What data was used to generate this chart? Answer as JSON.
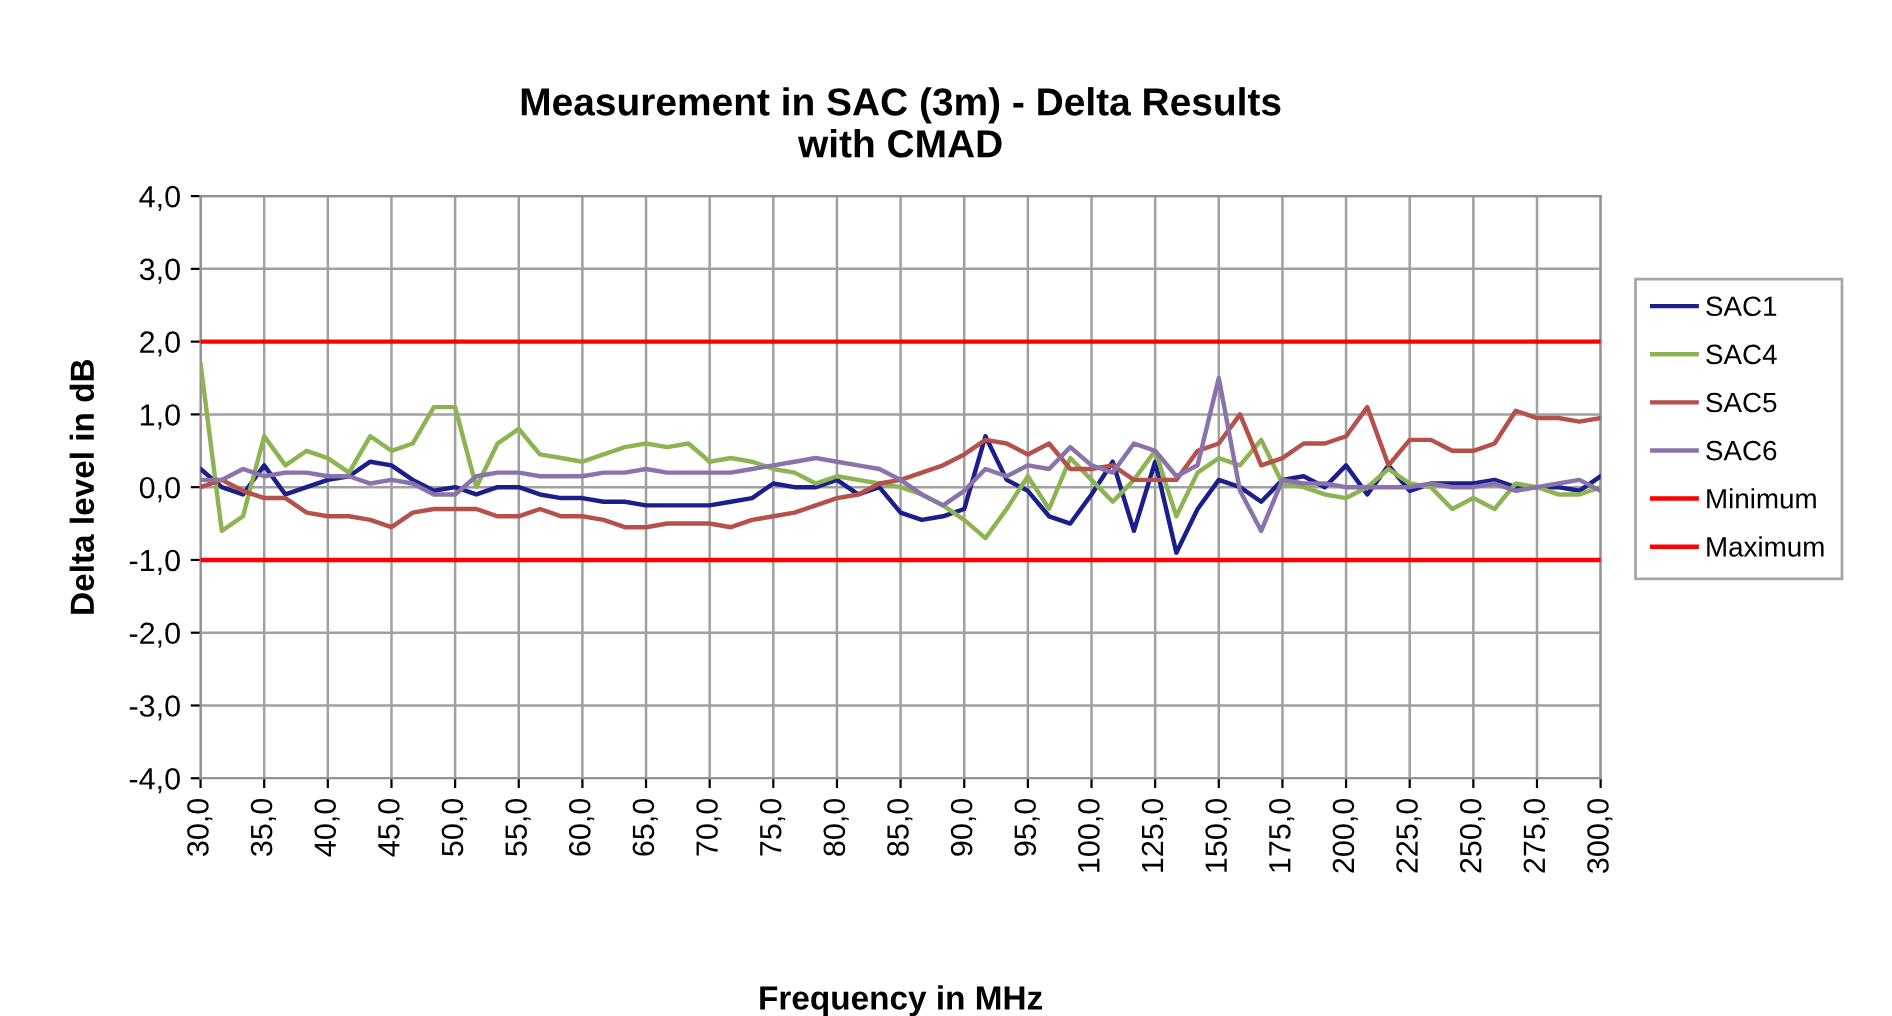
{
  "chart_data": {
    "type": "line",
    "title": "Measurement in SAC (3m) - Delta Results\nwith CMAD",
    "xlabel": "Frequency in MHz",
    "ylabel": "Delta level in dB",
    "categories": [
      "30,0",
      null,
      null,
      "35,0",
      null,
      null,
      "40,0",
      null,
      null,
      "45,0",
      null,
      null,
      "50,0",
      null,
      null,
      "55,0",
      null,
      null,
      "60,0",
      null,
      null,
      "65,0",
      null,
      null,
      "70,0",
      null,
      null,
      "75,0",
      null,
      null,
      "80,0",
      null,
      null,
      "85,0",
      null,
      null,
      "90,0",
      null,
      null,
      "95,0",
      null,
      null,
      "100,0",
      null,
      null,
      "125,0",
      null,
      null,
      "150,0",
      null,
      null,
      "175,0",
      null,
      null,
      "200,0",
      null,
      null,
      "225,0",
      null,
      null,
      "250,0",
      null,
      null,
      "275,0",
      null,
      null,
      "300,0"
    ],
    "series": [
      {
        "name": "SAC1",
        "color": "#1a1f8c",
        "values": [
          0.25,
          0.0,
          -0.1,
          0.3,
          -0.1,
          0.0,
          0.1,
          0.15,
          0.35,
          0.3,
          0.1,
          -0.05,
          0.0,
          -0.1,
          0.0,
          0.0,
          -0.1,
          -0.15,
          -0.15,
          -0.2,
          -0.2,
          -0.25,
          -0.25,
          -0.25,
          -0.25,
          -0.2,
          -0.15,
          0.05,
          0.0,
          0.0,
          0.1,
          -0.1,
          0.0,
          -0.35,
          -0.45,
          -0.4,
          -0.3,
          0.7,
          0.1,
          -0.05,
          -0.4,
          -0.5,
          -0.1,
          0.35,
          -0.6,
          0.35,
          -0.9,
          -0.3,
          0.1,
          0.0,
          -0.2,
          0.1,
          0.15,
          0.0,
          0.3,
          -0.1,
          0.3,
          -0.05,
          0.05,
          0.05,
          0.05,
          0.1,
          0.0,
          0.0,
          0.0,
          -0.05,
          0.15
        ]
      },
      {
        "name": "SAC4",
        "color": "#8db453",
        "values": [
          1.7,
          -0.6,
          -0.4,
          0.7,
          0.3,
          0.5,
          0.4,
          0.2,
          0.7,
          0.5,
          0.6,
          1.1,
          1.1,
          0.0,
          0.6,
          0.8,
          0.45,
          0.4,
          0.35,
          0.45,
          0.55,
          0.6,
          0.55,
          0.6,
          0.35,
          0.4,
          0.35,
          0.25,
          0.2,
          0.05,
          0.15,
          0.1,
          0.05,
          0.0,
          -0.1,
          -0.25,
          -0.45,
          -0.7,
          -0.3,
          0.15,
          -0.3,
          0.4,
          0.1,
          -0.2,
          0.1,
          0.5,
          -0.4,
          0.2,
          0.4,
          0.3,
          0.65,
          0.05,
          0.0,
          -0.1,
          -0.15,
          0.0,
          0.25,
          0.05,
          0.0,
          -0.3,
          -0.15,
          -0.3,
          0.05,
          0.0,
          -0.1,
          -0.1,
          0.0
        ]
      },
      {
        "name": "SAC5",
        "color": "#b5504b",
        "values": [
          0.0,
          0.1,
          -0.05,
          -0.15,
          -0.15,
          -0.35,
          -0.4,
          -0.4,
          -0.45,
          -0.55,
          -0.35,
          -0.3,
          -0.3,
          -0.3,
          -0.4,
          -0.4,
          -0.3,
          -0.4,
          -0.4,
          -0.45,
          -0.55,
          -0.55,
          -0.5,
          -0.5,
          -0.5,
          -0.55,
          -0.45,
          -0.4,
          -0.35,
          -0.25,
          -0.15,
          -0.1,
          0.05,
          0.1,
          0.2,
          0.3,
          0.45,
          0.65,
          0.6,
          0.45,
          0.6,
          0.25,
          0.25,
          0.3,
          0.1,
          0.1,
          0.1,
          0.5,
          0.6,
          1.0,
          0.3,
          0.4,
          0.6,
          0.6,
          0.7,
          1.1,
          0.3,
          0.65,
          0.65,
          0.5,
          0.5,
          0.6,
          1.05,
          0.95,
          0.95,
          0.9,
          0.95
        ]
      },
      {
        "name": "SAC6",
        "color": "#8a72aa",
        "values": [
          0.1,
          0.1,
          0.25,
          0.15,
          0.2,
          0.2,
          0.15,
          0.15,
          0.05,
          0.1,
          0.05,
          -0.1,
          -0.1,
          0.15,
          0.2,
          0.2,
          0.15,
          0.15,
          0.15,
          0.2,
          0.2,
          0.25,
          0.2,
          0.2,
          0.2,
          0.2,
          0.25,
          0.3,
          0.35,
          0.4,
          0.35,
          0.3,
          0.25,
          0.1,
          -0.1,
          -0.25,
          -0.05,
          0.25,
          0.15,
          0.3,
          0.25,
          0.55,
          0.3,
          0.2,
          0.6,
          0.5,
          0.15,
          0.3,
          1.5,
          -0.05,
          -0.6,
          0.1,
          0.05,
          0.05,
          0.0,
          0.0,
          0.0,
          0.0,
          0.05,
          0.0,
          0.0,
          0.05,
          -0.05,
          0.0,
          0.05,
          0.1,
          -0.05
        ]
      },
      {
        "name": "Minimum",
        "color": "#ff0000",
        "values": [
          -1,
          -1,
          -1,
          -1,
          -1,
          -1,
          -1,
          -1,
          -1,
          -1,
          -1,
          -1,
          -1,
          -1,
          -1,
          -1,
          -1,
          -1,
          -1,
          -1,
          -1,
          -1,
          -1,
          -1,
          -1,
          -1,
          -1,
          -1,
          -1,
          -1,
          -1,
          -1,
          -1,
          -1,
          -1,
          -1,
          -1,
          -1,
          -1,
          -1,
          -1,
          -1,
          -1,
          -1,
          -1,
          -1,
          -1,
          -1,
          -1,
          -1,
          -1,
          -1,
          -1,
          -1,
          -1,
          -1,
          -1,
          -1,
          -1,
          -1,
          -1,
          -1,
          -1,
          -1,
          -1,
          -1,
          -1
        ]
      },
      {
        "name": "Maximum",
        "color": "#ff0000",
        "values": [
          2,
          2,
          2,
          2,
          2,
          2,
          2,
          2,
          2,
          2,
          2,
          2,
          2,
          2,
          2,
          2,
          2,
          2,
          2,
          2,
          2,
          2,
          2,
          2,
          2,
          2,
          2,
          2,
          2,
          2,
          2,
          2,
          2,
          2,
          2,
          2,
          2,
          2,
          2,
          2,
          2,
          2,
          2,
          2,
          2,
          2,
          2,
          2,
          2,
          2,
          2,
          2,
          2,
          2,
          2,
          2,
          2,
          2,
          2,
          2,
          2,
          2,
          2,
          2,
          2,
          2,
          2
        ]
      }
    ],
    "ylim": [
      -4,
      4
    ],
    "yticks": [
      {
        "value": -4,
        "label": "-4,0"
      },
      {
        "value": -3,
        "label": "-3,0"
      },
      {
        "value": -2,
        "label": "-2,0"
      },
      {
        "value": -1,
        "label": "-1,0"
      },
      {
        "value": 0,
        "label": "0,0"
      },
      {
        "value": 1,
        "label": "1,0"
      },
      {
        "value": 2,
        "label": "2,0"
      },
      {
        "value": 3,
        "label": "3,0"
      },
      {
        "value": 4,
        "label": "4,0"
      }
    ],
    "grid": true,
    "legend": "right",
    "marker": "none",
    "line_style": "solid"
  }
}
